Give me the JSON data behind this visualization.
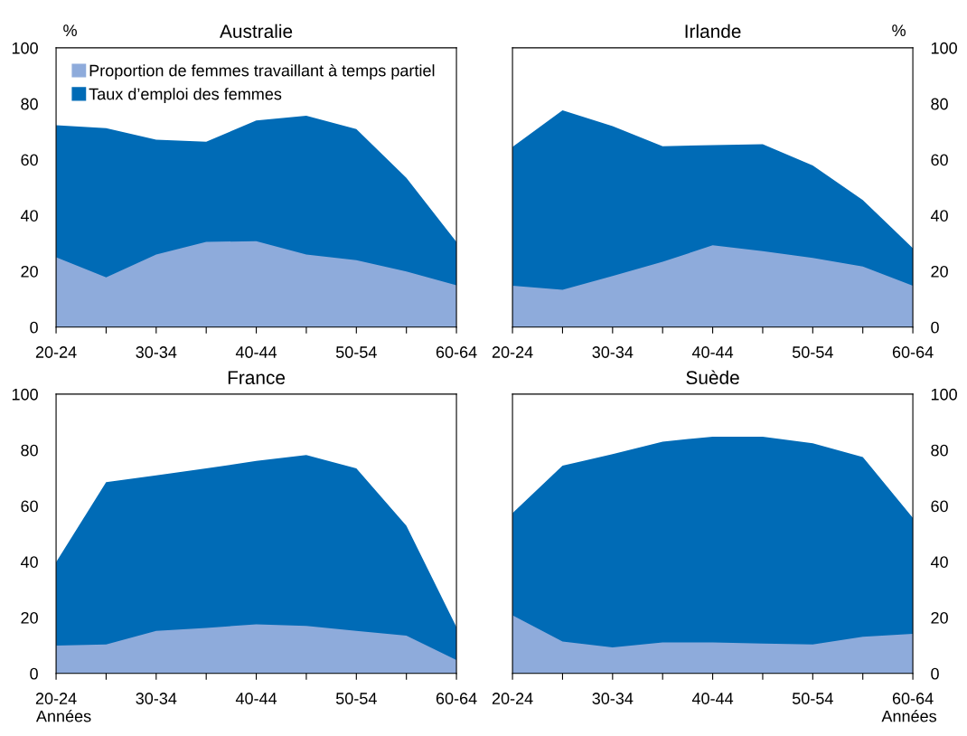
{
  "chart_data": [
    {
      "type": "area",
      "title": "Australie",
      "categories": [
        "20-24",
        null,
        "30-34",
        null,
        "40-44",
        null,
        "50-54",
        null,
        "60-64"
      ],
      "ylim": [
        0,
        100
      ],
      "yticks": [
        0,
        20,
        40,
        60,
        80,
        100
      ],
      "annotations": [
        "%"
      ],
      "legend": "top left",
      "grid": false,
      "series": [
        {
          "name": "Taux d’emploi des femmes",
          "color": "#006bb6",
          "values": [
            72.3,
            71.2,
            67.1,
            66.4,
            74,
            75.7,
            70.9,
            53.4,
            30.5
          ]
        },
        {
          "name": "Proportion de femmes travaillant à temps partiel",
          "color": "#8eabdb",
          "values": [
            25,
            17.8,
            26,
            30.5,
            30.8,
            26,
            24,
            19.9,
            15
          ]
        }
      ]
    },
    {
      "type": "area",
      "title": "Irlande",
      "categories": [
        "20-24",
        null,
        "30-34",
        null,
        "40-44",
        null,
        "50-54",
        null,
        "60-64"
      ],
      "y2lim": [
        0,
        100
      ],
      "y2ticks": [
        0,
        20,
        40,
        60,
        80,
        100
      ],
      "annotations": [
        "%"
      ],
      "grid": false,
      "series": [
        {
          "color": "#006bb6",
          "axis": "y2",
          "values": [
            64.5,
            77.6,
            72,
            64.8,
            65.2,
            65.5,
            57.9,
            45.5,
            28.3
          ]
        },
        {
          "color": "#8eabdb",
          "axis": "y2",
          "values": [
            14.8,
            13.4,
            18.3,
            23.4,
            29.3,
            27.2,
            24.8,
            21.7,
            14.8
          ]
        }
      ]
    },
    {
      "type": "area",
      "title": "France",
      "xlabel": "Années",
      "categories": [
        "20-24",
        null,
        "30-34",
        null,
        "40-44",
        null,
        "50-54",
        null,
        "60-64"
      ],
      "ylim": [
        0,
        100
      ],
      "yticks": [
        0,
        20,
        40,
        60,
        80,
        100
      ],
      "grid": false,
      "series": [
        {
          "color": "#006bb6",
          "values": [
            39.8,
            68.5,
            70.9,
            73.4,
            76.1,
            78.2,
            73.4,
            52.9,
            16.6
          ]
        },
        {
          "color": "#8eabdb",
          "values": [
            10,
            10.4,
            15.2,
            16.3,
            17.6,
            17,
            15.2,
            13.5,
            4.8
          ]
        }
      ]
    },
    {
      "type": "area",
      "title": "Suède",
      "xlabel": "Années",
      "categories": [
        "20-24",
        null,
        "30-34",
        null,
        "40-44",
        null,
        "50-54",
        null,
        "60-64"
      ],
      "y2lim": [
        0,
        100
      ],
      "y2ticks": [
        0,
        20,
        40,
        60,
        80,
        100
      ],
      "grid": false,
      "series": [
        {
          "color": "#006bb6",
          "axis": "y2",
          "values": [
            57.4,
            74.4,
            78.5,
            83,
            84.8,
            84.8,
            82.4,
            77.5,
            55.7
          ]
        },
        {
          "color": "#8eabdb",
          "axis": "y2",
          "values": [
            20.8,
            11.4,
            9.3,
            11.1,
            11.1,
            10.7,
            10.4,
            13.1,
            14.2
          ]
        }
      ]
    }
  ]
}
